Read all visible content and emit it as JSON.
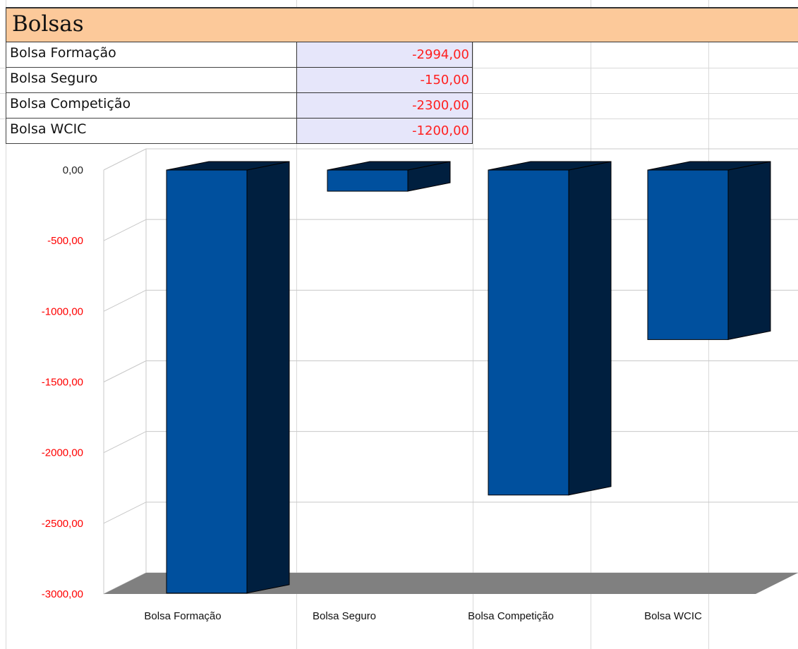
{
  "table": {
    "title": "Bolsas",
    "rows": [
      {
        "label": "Bolsa Formação",
        "value": "-2994,00"
      },
      {
        "label": "Bolsa Seguro",
        "value": "-150,00"
      },
      {
        "label": "Bolsa Competição",
        "value": "-2300,00"
      },
      {
        "label": "Bolsa WCIC",
        "value": "-1200,00"
      }
    ]
  },
  "colors": {
    "header_fill": "#fcc99a",
    "value_cell_fill": "#e6e6fa",
    "negative_text": "#ff0000",
    "bar_front": "#00509e",
    "bar_side": "#001f3f",
    "floor": "#808080"
  },
  "chart_data": {
    "type": "bar",
    "style": "3d",
    "categories": [
      "Bolsa Formação",
      "Bolsa Seguro",
      "Bolsa Competição",
      "Bolsa WCIC"
    ],
    "values": [
      -2994,
      -150,
      -2300,
      -1200
    ],
    "title": "",
    "xlabel": "",
    "ylabel": "",
    "ylim": [
      -3000,
      0
    ],
    "yticks": [
      "0,00",
      "-500,00",
      "-1000,00",
      "-1500,00",
      "-2000,00",
      "-2500,00",
      "-3000,00"
    ],
    "grid": true,
    "legend": "none"
  }
}
